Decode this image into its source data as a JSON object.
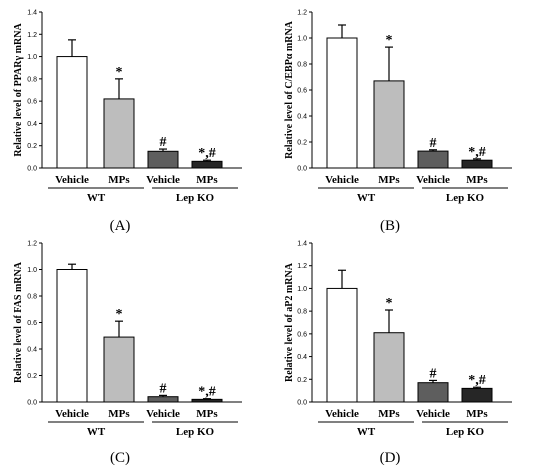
{
  "colors": {
    "wt_vehicle": "#ffffff",
    "wt_mps": "#bdbdbd",
    "ko_vehicle": "#5e5e5e",
    "ko_mps": "#262626",
    "stroke": "#000000"
  },
  "chart_data": [
    {
      "type": "bar",
      "panel_label": "(A)",
      "ylabel": "Relative level of PPARγ mRNA",
      "ylim": [
        0,
        1.4
      ],
      "yticks": [
        "0.0",
        "0.2",
        "0.4",
        "0.6",
        "0.8",
        "1.0",
        "1.2",
        "1.4"
      ],
      "categories": [
        "Vehicle",
        "MPs",
        "Vehicle",
        "MPs"
      ],
      "groups": [
        "WT",
        "Lep KO"
      ],
      "values": [
        1.0,
        0.62,
        0.15,
        0.06
      ],
      "errors": [
        0.15,
        0.18,
        0.02,
        0.01
      ],
      "annotations": [
        "",
        "*",
        "#",
        "*,#"
      ]
    },
    {
      "type": "bar",
      "panel_label": "(B)",
      "ylabel": "Relative level of C/EBPα mRNA",
      "ylim": [
        0,
        1.2
      ],
      "yticks": [
        "0.0",
        "0.2",
        "0.4",
        "0.6",
        "0.8",
        "1.0",
        "1.2"
      ],
      "categories": [
        "Vehicle",
        "MPs",
        "Vehicle",
        "MPs"
      ],
      "groups": [
        "WT",
        "Lep KO"
      ],
      "values": [
        1.0,
        0.67,
        0.13,
        0.06
      ],
      "errors": [
        0.1,
        0.26,
        0.01,
        0.01
      ],
      "annotations": [
        "",
        "*",
        "#",
        "*,#"
      ]
    },
    {
      "type": "bar",
      "panel_label": "(C)",
      "ylabel": "Relative level of FAS mRNA",
      "ylim": [
        0,
        1.2
      ],
      "yticks": [
        "0.0",
        "0.2",
        "0.4",
        "0.6",
        "0.8",
        "1.0",
        "1.2"
      ],
      "categories": [
        "Vehicle",
        "MPs",
        "Vehicle",
        "MPs"
      ],
      "groups": [
        "WT",
        "Lep KO"
      ],
      "values": [
        1.0,
        0.49,
        0.04,
        0.02
      ],
      "errors": [
        0.04,
        0.12,
        0.01,
        0.005
      ],
      "annotations": [
        "",
        "*",
        "#",
        "*,#"
      ]
    },
    {
      "type": "bar",
      "panel_label": "(D)",
      "ylabel": "Relative level of aP2 mRNA",
      "ylim": [
        0,
        1.4
      ],
      "yticks": [
        "0.0",
        "0.2",
        "0.4",
        "0.6",
        "0.8",
        "1.0",
        "1.2",
        "1.4"
      ],
      "categories": [
        "Vehicle",
        "MPs",
        "Vehicle",
        "MPs"
      ],
      "groups": [
        "WT",
        "Lep KO"
      ],
      "values": [
        1.0,
        0.61,
        0.17,
        0.12
      ],
      "errors": [
        0.16,
        0.2,
        0.02,
        0.01
      ],
      "annotations": [
        "",
        "*",
        "#",
        "*,#"
      ]
    }
  ]
}
